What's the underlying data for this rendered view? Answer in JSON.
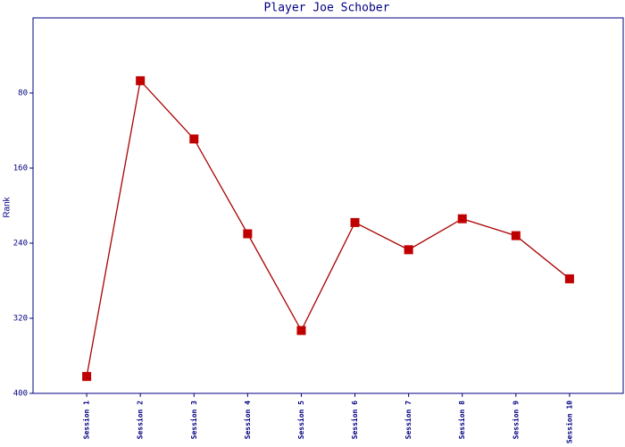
{
  "chart_data": {
    "type": "line",
    "title": "Player Joe Schober",
    "y_label": "Rank",
    "categories": [
      "Session 1",
      "Session 2",
      "Session 3",
      "Session 4",
      "Session 5",
      "Session 6",
      "Session 7",
      "Session 8",
      "Session 9",
      "Session 10"
    ],
    "series": [
      {
        "name": "Rank",
        "color": "#aa0000",
        "marker_color": "#c00000",
        "values": [
          382,
          67,
          129,
          230,
          333,
          218,
          247,
          214,
          232,
          278
        ]
      }
    ],
    "ylim": [
      400,
      0
    ],
    "yticks": [
      80,
      160,
      240,
      320,
      400
    ],
    "grid": false,
    "axis_color": "#000080"
  }
}
